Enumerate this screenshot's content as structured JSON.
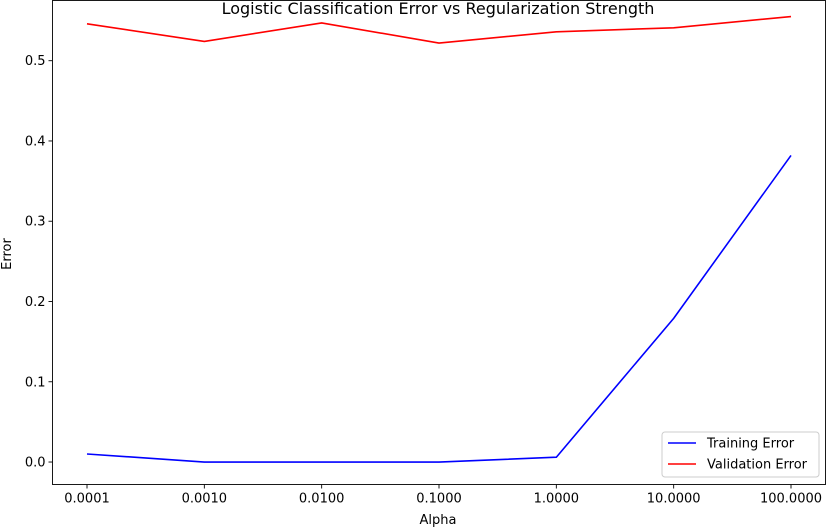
{
  "chart_data": {
    "type": "line",
    "title": "Logistic Classification Error vs Regularization Strength",
    "xlabel": "Alpha",
    "ylabel": "Error",
    "categories": [
      "0.0001",
      "0.0010",
      "0.0100",
      "0.1000",
      "1.0000",
      "10.0000",
      "100.0000"
    ],
    "yticks": [
      "0.0",
      "0.1",
      "0.2",
      "0.3",
      "0.4",
      "0.5"
    ],
    "ylim": [
      -0.028,
      0.575
    ],
    "grid": false,
    "legend_position": "bottom-right",
    "series": [
      {
        "name": "Training Error",
        "color": "#0000ff",
        "values": [
          0.01,
          0.0,
          0.0,
          0.0,
          0.006,
          0.179,
          0.382
        ]
      },
      {
        "name": "Validation Error",
        "color": "#ff0000",
        "values": [
          0.546,
          0.524,
          0.547,
          0.522,
          0.536,
          0.541,
          0.555
        ]
      }
    ]
  }
}
